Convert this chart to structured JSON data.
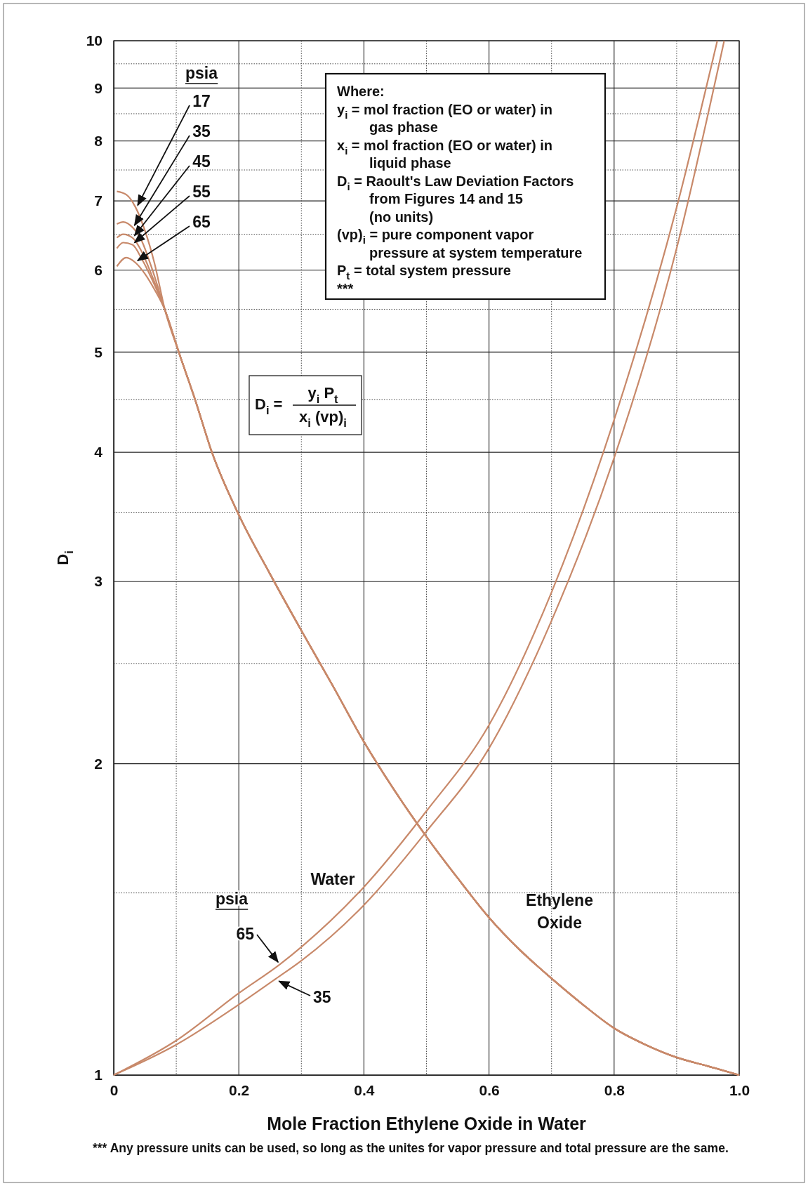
{
  "chart_data": {
    "type": "line",
    "xlabel": "Mole Fraction Ethylene Oxide in Water",
    "ylabel": "D$_{i}$",
    "legend_title": "psia",
    "log": "y",
    "grid": true,
    "line_style": "solid",
    "marker": "none",
    "xlim": [
      0,
      1
    ],
    "ylim": [
      1,
      10
    ],
    "xticks": [
      0,
      {
        "value": 0.1,
        "label": null
      },
      0.2,
      {
        "value": 0.3,
        "label": null
      },
      0.4,
      {
        "value": 0.5,
        "label": null
      },
      0.6,
      {
        "value": 0.7,
        "label": null
      },
      0.8,
      {
        "value": 0.9,
        "label": null
      },
      {
        "value": 1,
        "label": "1.0"
      }
    ],
    "yticks": [
      1,
      {
        "value": 1.5,
        "label": null
      },
      2,
      {
        "value": 2.5,
        "label": null
      },
      3,
      {
        "value": 3.5,
        "label": null
      },
      4,
      {
        "value": 4.5,
        "label": null
      },
      5,
      {
        "value": 5.5,
        "label": null
      },
      6,
      {
        "value": 6.5,
        "label": null
      },
      7,
      {
        "value": 7.5,
        "label": null
      },
      8,
      {
        "value": 8.5,
        "label": null
      },
      9,
      {
        "value": 9.5,
        "label": null
      },
      10
    ],
    "series": [
      {
        "name": "17",
        "color": "#c8896a",
        "x": [
          0.005,
          0.02,
          0.035,
          0.05,
          0.065,
          0.082,
          0.104,
          0.13,
          0.157,
          0.2,
          0.25,
          0.3,
          0.35,
          0.4,
          0.45,
          0.5,
          0.55,
          0.6,
          0.65,
          0.7,
          0.75,
          0.8,
          0.85,
          0.9,
          0.95,
          1
        ],
        "values": [
          7.15,
          7.1,
          6.9,
          6.55,
          6.1,
          5.49,
          5.0,
          4.5,
          4.0,
          3.48,
          3.05,
          2.69,
          2.38,
          2.1,
          1.88,
          1.7,
          1.55,
          1.42,
          1.32,
          1.24,
          1.17,
          1.11,
          1.07,
          1.04,
          1.02,
          1
        ]
      },
      {
        "name": "35",
        "color": "#c8896a",
        "x": [
          0.005,
          0.015,
          0.03,
          0.045,
          0.06,
          0.082,
          0.104,
          0.13,
          0.157,
          0.2,
          0.25,
          0.3,
          0.35,
          0.4,
          0.45,
          0.5,
          0.55,
          0.6,
          0.65,
          0.7,
          0.75,
          0.8,
          0.85,
          0.9,
          0.95,
          1
        ],
        "values": [
          6.65,
          6.68,
          6.6,
          6.4,
          6.05,
          5.49,
          5.0,
          4.5,
          4.0,
          3.48,
          3.05,
          2.69,
          2.38,
          2.1,
          1.88,
          1.7,
          1.55,
          1.42,
          1.32,
          1.24,
          1.17,
          1.11,
          1.07,
          1.04,
          1.02,
          1
        ]
      },
      {
        "name": "45",
        "color": "#c8896a",
        "x": [
          0.005,
          0.015,
          0.03,
          0.045,
          0.06,
          0.082,
          0.104,
          0.13,
          0.157,
          0.2,
          0.25,
          0.3,
          0.35,
          0.4,
          0.45,
          0.5,
          0.55,
          0.6,
          0.65,
          0.7,
          0.75,
          0.8,
          0.85,
          0.9,
          0.95,
          1
        ],
        "values": [
          6.45,
          6.5,
          6.45,
          6.25,
          5.95,
          5.49,
          5.0,
          4.5,
          4.0,
          3.48,
          3.05,
          2.69,
          2.38,
          2.1,
          1.88,
          1.7,
          1.55,
          1.42,
          1.32,
          1.24,
          1.17,
          1.11,
          1.07,
          1.04,
          1.02,
          1
        ]
      },
      {
        "name": "55",
        "color": "#c8896a",
        "x": [
          0.005,
          0.015,
          0.03,
          0.045,
          0.06,
          0.082,
          0.104,
          0.13,
          0.157,
          0.2,
          0.25,
          0.3,
          0.35,
          0.4,
          0.45,
          0.5,
          0.55,
          0.6,
          0.65,
          0.7,
          0.75,
          0.8,
          0.85,
          0.9,
          0.95,
          1
        ],
        "values": [
          6.3,
          6.38,
          6.35,
          6.15,
          5.9,
          5.49,
          5.0,
          4.5,
          4.0,
          3.48,
          3.05,
          2.69,
          2.38,
          2.1,
          1.88,
          1.7,
          1.55,
          1.42,
          1.32,
          1.24,
          1.17,
          1.11,
          1.07,
          1.04,
          1.02,
          1
        ]
      },
      {
        "name": "65",
        "color": "#c8896a",
        "x": [
          0.005,
          0.02,
          0.035,
          0.05,
          0.065,
          0.082,
          0.104,
          0.13,
          0.157,
          0.2,
          0.25,
          0.3,
          0.35,
          0.4,
          0.45,
          0.5,
          0.55,
          0.6,
          0.65,
          0.7,
          0.75,
          0.8,
          0.85,
          0.9,
          0.95,
          1
        ],
        "values": [
          6.05,
          6.17,
          6.1,
          5.95,
          5.75,
          5.49,
          5.0,
          4.5,
          4.0,
          3.48,
          3.05,
          2.69,
          2.38,
          2.1,
          1.88,
          1.7,
          1.55,
          1.42,
          1.32,
          1.24,
          1.17,
          1.11,
          1.07,
          1.04,
          1.02,
          1
        ]
      },
      {
        "name": "65",
        "color": "#c8896a",
        "x": [
          0,
          0.1,
          0.2,
          0.266,
          0.3,
          0.4,
          0.5,
          0.6,
          0.7,
          0.8,
          0.9,
          0.965
        ],
        "values": [
          1,
          1.08,
          1.2,
          1.28,
          1.33,
          1.52,
          1.8,
          2.18,
          2.93,
          4.3,
          6.9,
          10
        ]
      },
      {
        "name": "35",
        "color": "#c8896a",
        "x": [
          0,
          0.1,
          0.2,
          0.26,
          0.3,
          0.4,
          0.5,
          0.6,
          0.7,
          0.8,
          0.9,
          0.976
        ],
        "values": [
          1,
          1.07,
          1.17,
          1.24,
          1.29,
          1.46,
          1.72,
          2.07,
          2.75,
          3.95,
          6.3,
          10
        ]
      }
    ],
    "annotations": [
      "Where:",
      "y$_{i}$ = mol fraction (EO or water) in\ngas phase",
      "x$_{i}$ = mol fraction (EO or water) in\nliquid phase",
      "D$_{i}$ = Raoult's Law Deviation Factors\nfrom Figures 14 and 15\n(no units)",
      "(vp)$_{i}$ = pure component vapor\npressure at system temperature",
      "P$_{t}$ = total system pressure",
      "***",
      "D$_{i}$ =",
      "y$_{i}$ P$_{t}$",
      "x$_{i}$ (vp)$_{i}$",
      "*** Any pressure units can be used, so long as the unites for vapor pressure and total pressure are the same.",
      "Water",
      "Ethylene\nOxide"
    ]
  }
}
